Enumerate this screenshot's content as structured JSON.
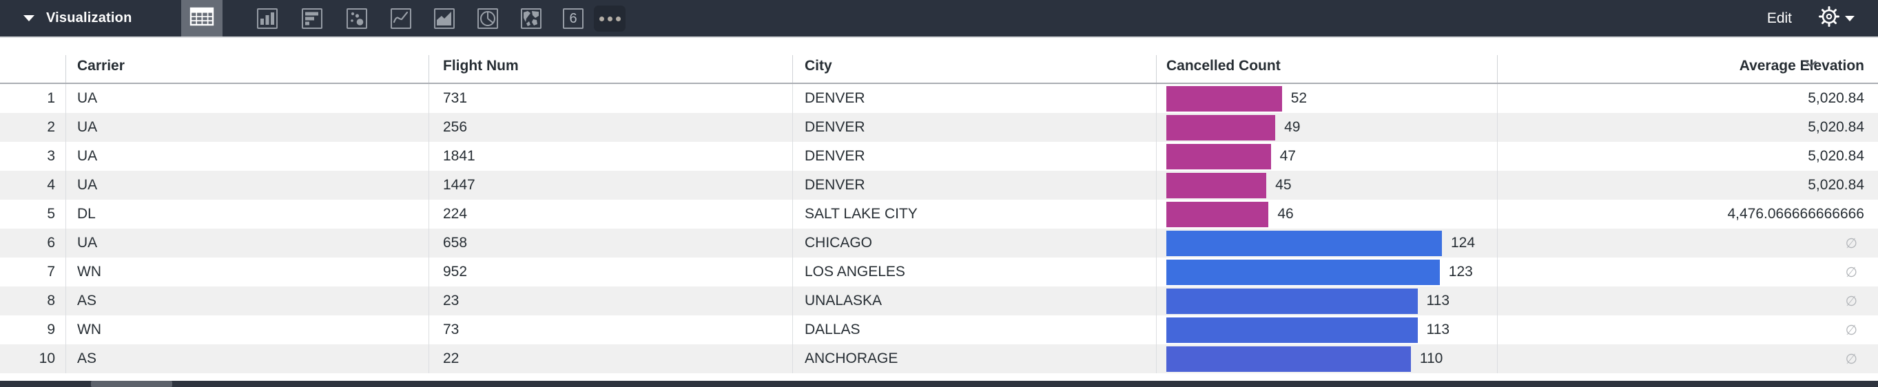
{
  "toolbar": {
    "title": "Visualization",
    "edit_label": "Edit",
    "chart_types": [
      {
        "id": "table",
        "selected": true
      },
      {
        "id": "column",
        "selected": false
      },
      {
        "id": "bar",
        "selected": false
      },
      {
        "id": "scatter",
        "selected": false
      },
      {
        "id": "line",
        "selected": false
      },
      {
        "id": "area",
        "selected": false
      },
      {
        "id": "pie",
        "selected": false
      },
      {
        "id": "map",
        "selected": false
      },
      {
        "id": "single-value",
        "selected": false,
        "glyph": "6"
      },
      {
        "id": "more-options",
        "selected": false
      }
    ]
  },
  "table": {
    "columns": {
      "carrier": "Carrier",
      "flight_num": "Flight Num",
      "city": "City",
      "cancelled_count": "Cancelled Count",
      "avg_elevation": "Average Elevation"
    },
    "null_glyph": "∅",
    "rows": [
      {
        "num": "1",
        "carrier": "UA",
        "flight_num": "731",
        "city": "DENVER",
        "cancelled_count": 52,
        "bar_color": "#b23a93",
        "avg_elevation": "5,020.84"
      },
      {
        "num": "2",
        "carrier": "UA",
        "flight_num": "256",
        "city": "DENVER",
        "cancelled_count": 49,
        "bar_color": "#b23a93",
        "avg_elevation": "5,020.84"
      },
      {
        "num": "3",
        "carrier": "UA",
        "flight_num": "1841",
        "city": "DENVER",
        "cancelled_count": 47,
        "bar_color": "#b23a93",
        "avg_elevation": "5,020.84"
      },
      {
        "num": "4",
        "carrier": "UA",
        "flight_num": "1447",
        "city": "DENVER",
        "cancelled_count": 45,
        "bar_color": "#b23a93",
        "avg_elevation": "5,020.84"
      },
      {
        "num": "5",
        "carrier": "DL",
        "flight_num": "224",
        "city": "SALT LAKE CITY",
        "cancelled_count": 46,
        "bar_color": "#b23a93",
        "avg_elevation": "4,476.066666666666"
      },
      {
        "num": "6",
        "carrier": "UA",
        "flight_num": "658",
        "city": "CHICAGO",
        "cancelled_count": 124,
        "bar_color": "#3b70e1",
        "avg_elevation": ""
      },
      {
        "num": "7",
        "carrier": "WN",
        "flight_num": "952",
        "city": "LOS ANGELES",
        "cancelled_count": 123,
        "bar_color": "#3b70e1",
        "avg_elevation": ""
      },
      {
        "num": "8",
        "carrier": "AS",
        "flight_num": "23",
        "city": "UNALASKA",
        "cancelled_count": 113,
        "bar_color": "#4467da",
        "avg_elevation": ""
      },
      {
        "num": "9",
        "carrier": "WN",
        "flight_num": "73",
        "city": "DALLAS",
        "cancelled_count": 113,
        "bar_color": "#4467da",
        "avg_elevation": ""
      },
      {
        "num": "10",
        "carrier": "AS",
        "flight_num": "22",
        "city": "ANCHORAGE",
        "cancelled_count": 110,
        "bar_color": "#4c62d6",
        "avg_elevation": ""
      }
    ]
  },
  "colors": {
    "toolbar_bg": "#2b323e",
    "bar_magenta": "#b23a93",
    "bar_blue_high": "#3b70e1",
    "alt_row_bg": "#f0f0f0"
  }
}
